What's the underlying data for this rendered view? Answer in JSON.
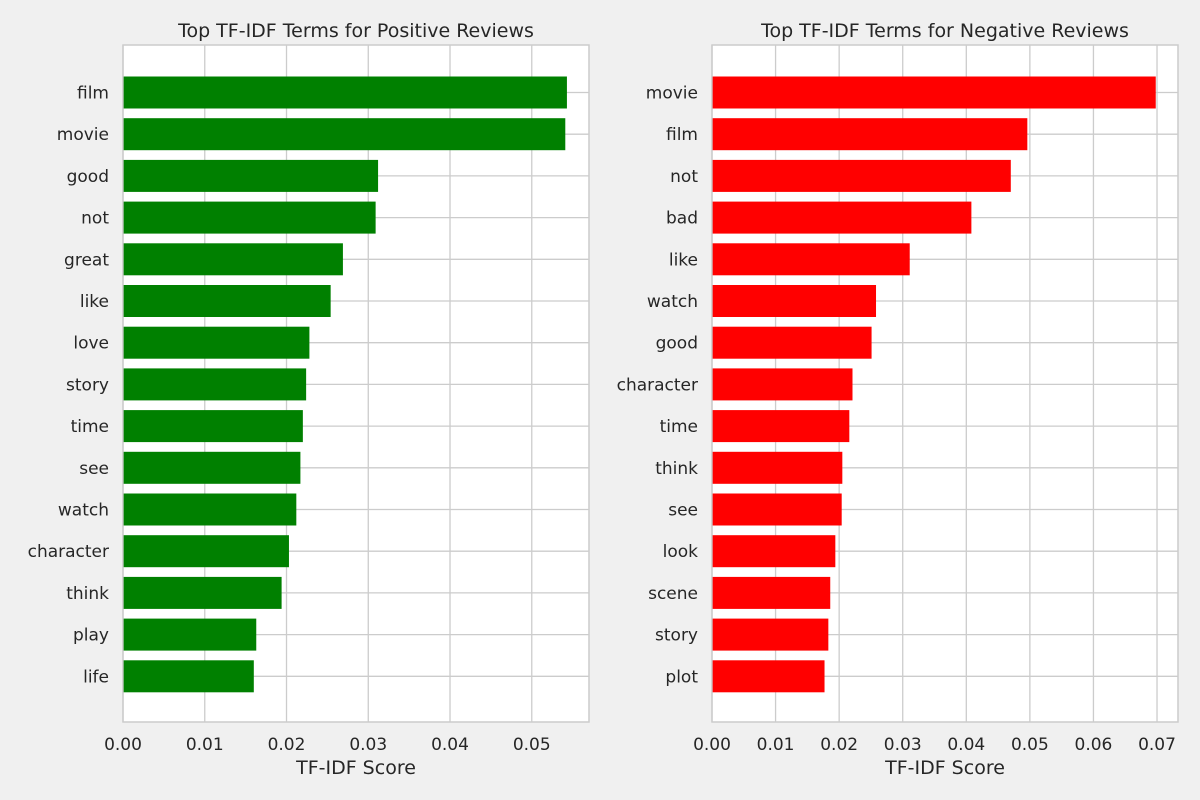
{
  "chart_data": [
    {
      "type": "bar",
      "orientation": "horizontal",
      "title": "Top TF-IDF Terms for Positive Reviews",
      "xlabel": "TF-IDF Score",
      "ylabel": "",
      "color": "#008000",
      "xlim": [
        0,
        0.057
      ],
      "xticks": [
        "0.00",
        "0.01",
        "0.02",
        "0.03",
        "0.04",
        "0.05"
      ],
      "grid": true,
      "categories": [
        "film",
        "movie",
        "good",
        "not",
        "great",
        "like",
        "love",
        "story",
        "time",
        "see",
        "watch",
        "character",
        "think",
        "play",
        "life"
      ],
      "values": [
        0.0543,
        0.0541,
        0.0312,
        0.0309,
        0.0269,
        0.0254,
        0.0228,
        0.0224,
        0.022,
        0.0217,
        0.0212,
        0.0203,
        0.0194,
        0.0163,
        0.016
      ]
    },
    {
      "type": "bar",
      "orientation": "horizontal",
      "title": "Top TF-IDF Terms for Negative Reviews",
      "xlabel": "TF-IDF Score",
      "ylabel": "",
      "color": "#ff0000",
      "xlim": [
        0,
        0.0733
      ],
      "xticks": [
        "0.00",
        "0.01",
        "0.02",
        "0.03",
        "0.04",
        "0.05",
        "0.06",
        "0.07"
      ],
      "grid": true,
      "categories": [
        "movie",
        "film",
        "not",
        "bad",
        "like",
        "watch",
        "good",
        "character",
        "time",
        "think",
        "see",
        "look",
        "scene",
        "story",
        "plot"
      ],
      "values": [
        0.0698,
        0.0496,
        0.047,
        0.0408,
        0.0311,
        0.0258,
        0.0251,
        0.0221,
        0.0216,
        0.0205,
        0.0204,
        0.0194,
        0.0186,
        0.0183,
        0.0177
      ]
    }
  ]
}
